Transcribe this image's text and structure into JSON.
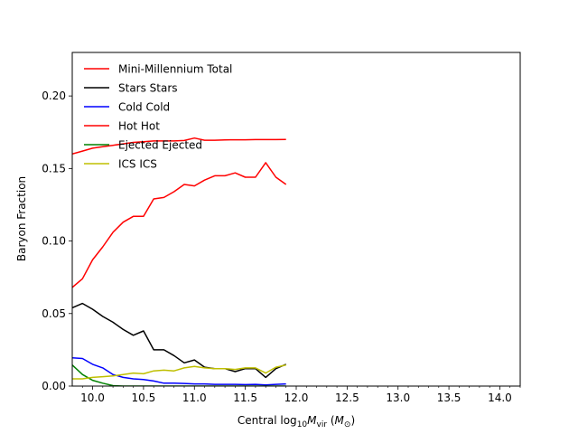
{
  "chart_data": {
    "type": "line",
    "xlabel": "Central log₁₀M_vir (M_⊙)",
    "xlabel_parts": {
      "pre": "Central log",
      "sub1": "10",
      "m": "M",
      "sub2": "vir",
      "open": " (",
      "m2": "M",
      "sub3": "⊙",
      "close": ")"
    },
    "ylabel": "Baryon Fraction",
    "xlim": [
      9.8,
      14.2
    ],
    "ylim": [
      0.0,
      0.23
    ],
    "xticks": [
      10.0,
      10.5,
      11.0,
      11.5,
      12.0,
      12.5,
      13.0,
      13.5,
      14.0
    ],
    "xtick_labels": [
      "10.0",
      "10.5",
      "11.0",
      "11.5",
      "12.0",
      "12.5",
      "13.0",
      "13.5",
      "14.0"
    ],
    "yticks": [
      0.0,
      0.05,
      0.1,
      0.15,
      0.2
    ],
    "ytick_labels": [
      "0.00",
      "0.05",
      "0.10",
      "0.15",
      "0.20"
    ],
    "legend_position": "top-left",
    "grid": false,
    "series": [
      {
        "name": "Mini-Millennium Total",
        "color": "#ff0000",
        "x": [
          9.8,
          9.9,
          10.0,
          10.1,
          10.2,
          10.3,
          10.4,
          10.5,
          10.6,
          10.7,
          10.8,
          10.9,
          11.0,
          11.1,
          11.2,
          11.3,
          11.4,
          11.5,
          11.6,
          11.7,
          11.8,
          11.9
        ],
        "values": [
          0.16,
          0.162,
          0.164,
          0.165,
          0.166,
          0.167,
          0.168,
          0.1685,
          0.169,
          0.169,
          0.169,
          0.1693,
          0.171,
          0.1695,
          0.1695,
          0.1697,
          0.1698,
          0.1698,
          0.1699,
          0.1699,
          0.1699,
          0.17
        ]
      },
      {
        "name": "Stars Stars",
        "color": "#000000",
        "x": [
          9.8,
          9.9,
          10.0,
          10.1,
          10.2,
          10.3,
          10.4,
          10.5,
          10.6,
          10.7,
          10.8,
          10.9,
          11.0,
          11.1,
          11.2,
          11.3,
          11.4,
          11.5,
          11.6,
          11.7,
          11.8,
          11.9
        ],
        "values": [
          0.054,
          0.057,
          0.053,
          0.048,
          0.044,
          0.039,
          0.035,
          0.038,
          0.025,
          0.025,
          0.021,
          0.016,
          0.018,
          0.013,
          0.012,
          0.012,
          0.01,
          0.012,
          0.012,
          0.006,
          0.012,
          0.015
        ]
      },
      {
        "name": "Cold Cold",
        "color": "#0000ff",
        "x": [
          9.8,
          9.9,
          10.0,
          10.1,
          10.2,
          10.3,
          10.4,
          10.5,
          10.6,
          10.7,
          10.8,
          10.9,
          11.0,
          11.1,
          11.2,
          11.3,
          11.4,
          11.5,
          11.6,
          11.7,
          11.8,
          11.9
        ],
        "values": [
          0.0195,
          0.019,
          0.015,
          0.0125,
          0.008,
          0.006,
          0.005,
          0.0045,
          0.0035,
          0.002,
          0.002,
          0.0018,
          0.0015,
          0.0015,
          0.0012,
          0.0012,
          0.0012,
          0.001,
          0.0012,
          0.0008,
          0.0012,
          0.0015
        ]
      },
      {
        "name": "Hot Hot",
        "color": "#ff0000",
        "x": [
          9.8,
          9.9,
          10.0,
          10.1,
          10.2,
          10.3,
          10.4,
          10.5,
          10.6,
          10.7,
          10.8,
          10.9,
          11.0,
          11.1,
          11.2,
          11.3,
          11.4,
          11.5,
          11.6,
          11.7,
          11.8,
          11.9
        ],
        "values": [
          0.068,
          0.074,
          0.087,
          0.096,
          0.106,
          0.113,
          0.117,
          0.117,
          0.129,
          0.13,
          0.134,
          0.139,
          0.138,
          0.142,
          0.145,
          0.145,
          0.147,
          0.144,
          0.144,
          0.154,
          0.144,
          0.139
        ]
      },
      {
        "name": "Ejected Ejected",
        "color": "#008000",
        "x": [
          9.8,
          9.9,
          10.0,
          10.1,
          10.2,
          10.3,
          10.4,
          10.5,
          10.6,
          10.7,
          10.8,
          10.9,
          11.0,
          11.1,
          11.2,
          11.3,
          11.4,
          11.5,
          11.6,
          11.7,
          11.8,
          11.9
        ],
        "values": [
          0.0145,
          0.008,
          0.004,
          0.002,
          0.0003,
          0.0,
          0.0,
          0.0,
          0.0,
          0.0,
          0.0,
          0.0,
          0.0,
          0.0,
          0.0,
          0.0,
          0.0,
          0.0,
          0.0,
          0.0,
          0.0,
          0.0
        ]
      },
      {
        "name": "ICS ICS",
        "color": "#bfbf00",
        "x": [
          9.8,
          9.9,
          10.0,
          10.1,
          10.2,
          10.3,
          10.4,
          10.5,
          10.6,
          10.7,
          10.8,
          10.9,
          11.0,
          11.1,
          11.2,
          11.3,
          11.4,
          11.5,
          11.6,
          11.7,
          11.8,
          11.9
        ],
        "values": [
          0.005,
          0.005,
          0.006,
          0.0065,
          0.007,
          0.008,
          0.009,
          0.0085,
          0.0105,
          0.011,
          0.0105,
          0.0125,
          0.0135,
          0.0125,
          0.012,
          0.012,
          0.0115,
          0.0125,
          0.0125,
          0.009,
          0.013,
          0.0145
        ]
      }
    ]
  }
}
